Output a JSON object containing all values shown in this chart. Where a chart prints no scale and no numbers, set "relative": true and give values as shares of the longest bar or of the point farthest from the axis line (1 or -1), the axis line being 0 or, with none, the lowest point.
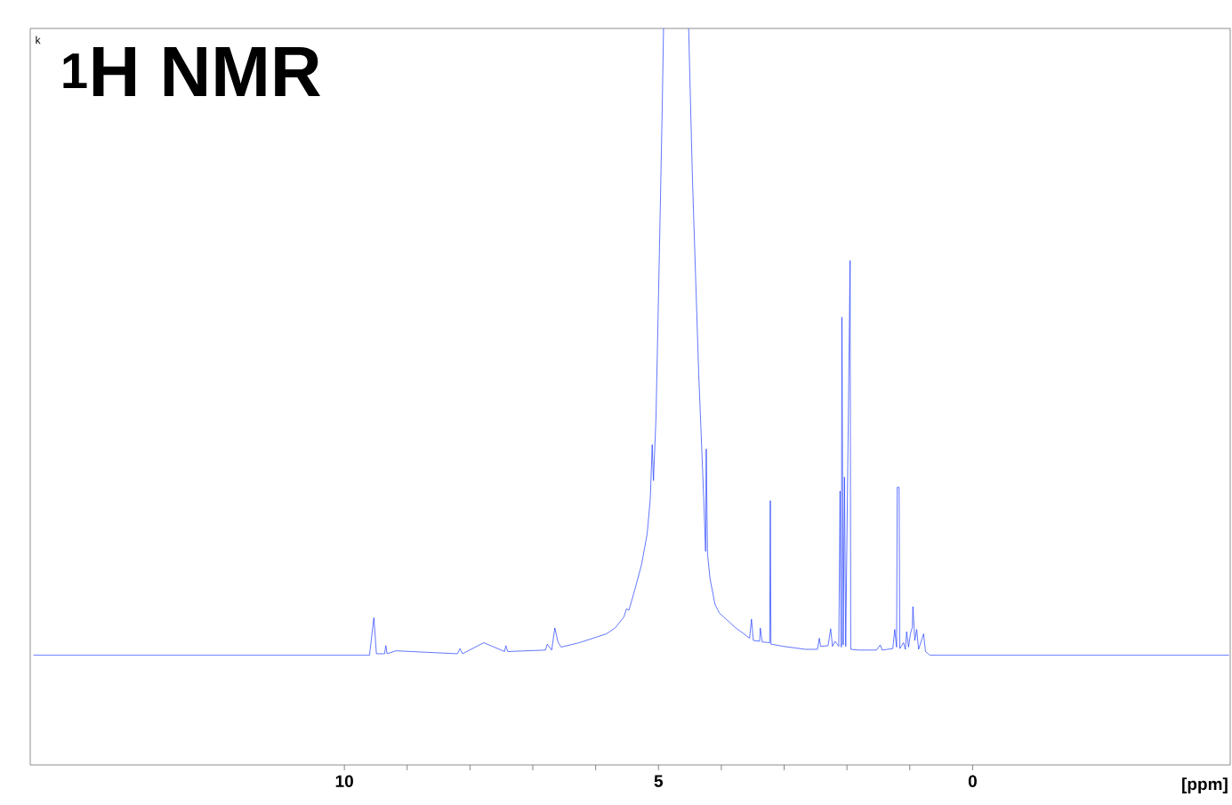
{
  "chart_data": {
    "type": "line",
    "title": "$^{1}$H NMR",
    "xlabel": "[ppm]",
    "annotations": [
      "k"
    ],
    "relative": true,
    "xlim": [
      15,
      -4.1
    ],
    "xticks": [
      10,
      5,
      0
    ],
    "series": [
      {
        "color": "#1f3cff",
        "x": [
          14.95,
          9.6,
          9.53,
          9.49,
          9.36,
          9.34,
          9.32,
          9.18,
          8.2,
          8.16,
          8.12,
          7.78,
          7.45,
          7.43,
          7.4,
          6.8,
          6.77,
          6.7,
          6.65,
          6.6,
          6.55,
          6.26,
          5.83,
          5.69,
          5.55,
          5.51,
          5.47,
          5.38,
          5.27,
          5.18,
          5.13,
          5.1,
          5.08,
          5.04,
          4.99,
          4.94,
          4.92,
          4.7,
          4.52,
          4.46,
          4.36,
          4.28,
          4.25,
          4.24,
          4.22,
          4.18,
          4.1,
          4.03,
          3.95,
          3.86,
          3.77,
          3.64,
          3.55,
          3.52,
          3.49,
          3.39,
          3.38,
          3.35,
          3.23,
          3.22,
          3.21,
          3.01,
          2.66,
          2.47,
          2.44,
          2.42,
          2.3,
          2.26,
          2.23,
          2.19,
          2.13,
          2.11,
          2.09,
          2.08,
          2.06,
          2.04,
          2.02,
          1.95,
          1.94,
          1.81,
          1.53,
          1.47,
          1.44,
          1.27,
          1.24,
          1.21,
          1.2,
          1.17,
          1.16,
          1.1,
          1.07,
          1.05,
          1.02,
          0.99,
          0.96,
          0.95,
          0.92,
          0.89,
          0.86,
          0.78,
          0.75,
          0.68,
          -4.08
        ],
        "values": [
          0.149,
          0.149,
          0.2,
          0.151,
          0.151,
          0.162,
          0.151,
          0.155,
          0.151,
          0.158,
          0.151,
          0.166,
          0.154,
          0.162,
          0.154,
          0.156,
          0.164,
          0.156,
          0.186,
          0.167,
          0.16,
          0.166,
          0.178,
          0.186,
          0.201,
          0.212,
          0.21,
          0.237,
          0.272,
          0.314,
          0.362,
          0.435,
          0.386,
          0.471,
          0.677,
          0.894,
          1,
          null,
          1,
          0.797,
          0.532,
          0.362,
          0.29,
          0.429,
          0.287,
          0.253,
          0.218,
          0.206,
          0.2,
          0.193,
          0.186,
          0.178,
          0.172,
          0.198,
          0.169,
          0.168,
          0.186,
          0.167,
          0.166,
          0.359,
          0.164,
          0.161,
          0.157,
          0.157,
          0.172,
          0.161,
          0.162,
          0.185,
          0.161,
          0.168,
          0.161,
          0.372,
          0.16,
          0.608,
          0.163,
          0.391,
          0.161,
          0.685,
          0.157,
          0.156,
          0.156,
          0.163,
          0.156,
          0.158,
          0.184,
          0.16,
          0.377,
          0.377,
          0.158,
          0.166,
          0.157,
          0.181,
          0.16,
          0.178,
          0.187,
          0.215,
          0.169,
          0.184,
          0.157,
          0.178,
          0.154,
          0.149,
          0.149
        ]
      }
    ]
  }
}
